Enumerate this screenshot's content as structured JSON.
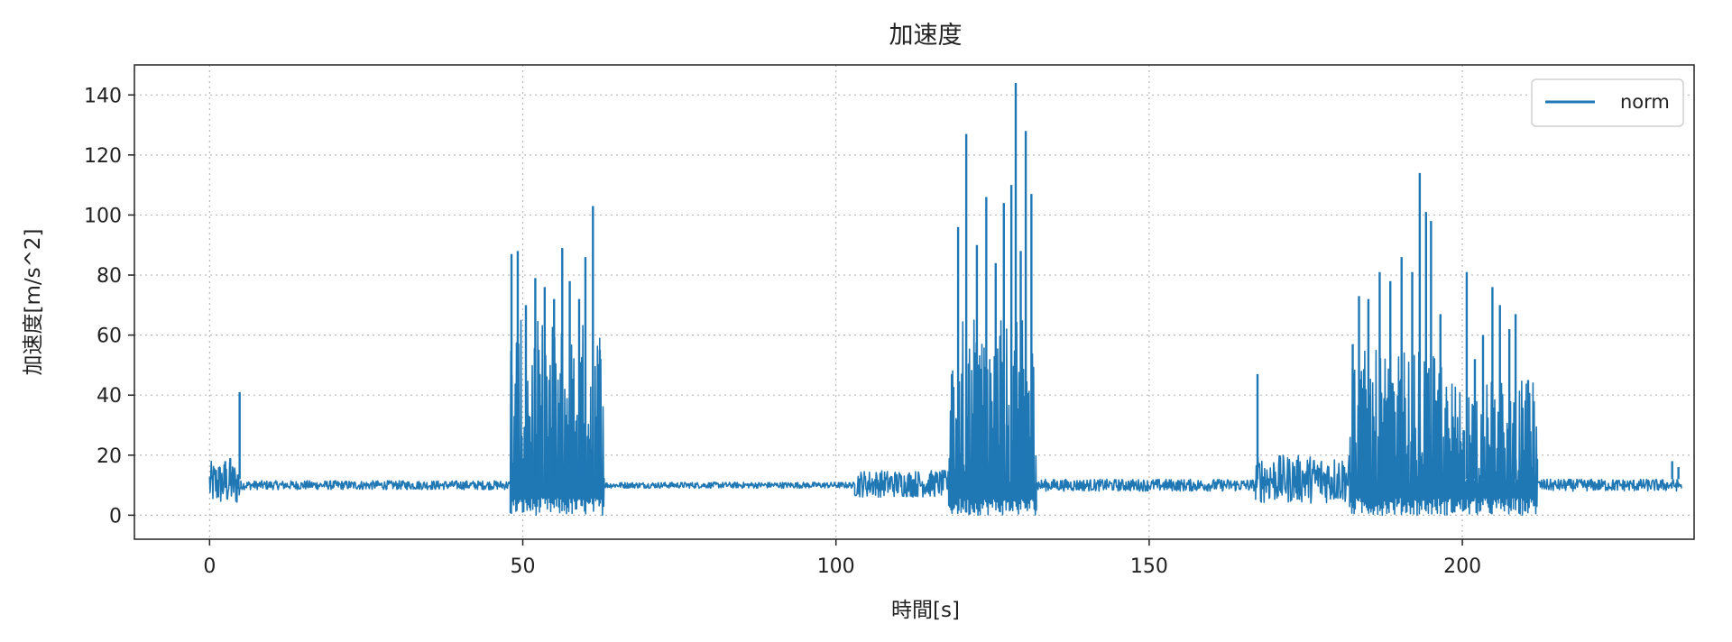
{
  "chart_data": {
    "type": "line",
    "title": "加速度",
    "xlabel": "時間[s]",
    "ylabel": "加速度[m/s^2]",
    "xlim": [
      -12,
      237
    ],
    "ylim": [
      -8,
      150
    ],
    "xticks": [
      0,
      50,
      100,
      150,
      200
    ],
    "yticks": [
      0,
      20,
      40,
      60,
      80,
      100,
      120,
      140
    ],
    "xtick_labels": [
      "0",
      "50",
      "100",
      "150",
      "200"
    ],
    "ytick_labels": [
      "0",
      "20",
      "40",
      "60",
      "80",
      "100",
      "120",
      "140"
    ],
    "grid": true,
    "legend_position": "top-right",
    "series": [
      {
        "name": "norm",
        "color": "#1f77b4",
        "segments": [
          {
            "t": [
              0,
              5
            ],
            "baseline": 10,
            "low": 3,
            "high": 18
          },
          {
            "t": [
              5,
              48
            ],
            "baseline": 10,
            "low": 8.5,
            "high": 11.5
          },
          {
            "t": [
              48,
              63
            ],
            "baseline": 10,
            "low": 0,
            "high": 65
          },
          {
            "t": [
              63,
              103
            ],
            "baseline": 10,
            "low": 9,
            "high": 11
          },
          {
            "t": [
              103,
              118
            ],
            "baseline": 10,
            "low": 6,
            "high": 15
          },
          {
            "t": [
              118,
              132
            ],
            "baseline": 10,
            "low": 0,
            "high": 65
          },
          {
            "t": [
              132,
              167
            ],
            "baseline": 10,
            "low": 8,
            "high": 12
          },
          {
            "t": [
              167,
              182
            ],
            "baseline": 11,
            "low": 4,
            "high": 20
          },
          {
            "t": [
              182,
              197
            ],
            "baseline": 10,
            "low": 0,
            "high": 55
          },
          {
            "t": [
              197,
              212
            ],
            "baseline": 10,
            "low": 0,
            "high": 45
          },
          {
            "t": [
              212,
              235
            ],
            "baseline": 10,
            "low": 8,
            "high": 12
          }
        ],
        "peaks": [
          [
            0.3,
            15
          ],
          [
            1.5,
            16
          ],
          [
            2.5,
            18
          ],
          [
            3.3,
            19
          ],
          [
            4.8,
            41
          ],
          [
            48.2,
            87
          ],
          [
            49.2,
            88
          ],
          [
            50.5,
            70
          ],
          [
            52,
            79
          ],
          [
            53.5,
            76
          ],
          [
            55,
            72
          ],
          [
            56.3,
            89
          ],
          [
            57.5,
            78
          ],
          [
            59,
            72
          ],
          [
            60,
            86
          ],
          [
            61.2,
            103
          ],
          [
            62.3,
            55
          ],
          [
            119.5,
            96
          ],
          [
            120.8,
            127
          ],
          [
            122.5,
            90
          ],
          [
            124,
            106
          ],
          [
            125.5,
            84
          ],
          [
            126.8,
            104
          ],
          [
            128,
            110
          ],
          [
            128.7,
            144
          ],
          [
            129.5,
            88
          ],
          [
            130.3,
            128
          ],
          [
            131.2,
            107
          ],
          [
            167.3,
            47
          ],
          [
            182.5,
            57
          ],
          [
            183.5,
            73
          ],
          [
            185,
            72
          ],
          [
            186.8,
            81
          ],
          [
            188.5,
            78
          ],
          [
            190.3,
            86
          ],
          [
            192,
            81
          ],
          [
            193.2,
            114
          ],
          [
            194.2,
            101
          ],
          [
            195,
            98
          ],
          [
            196.5,
            67
          ],
          [
            200.7,
            81
          ],
          [
            202,
            52
          ],
          [
            203.3,
            60
          ],
          [
            204.8,
            76
          ],
          [
            206,
            70
          ],
          [
            207.5,
            62
          ],
          [
            208.5,
            67
          ],
          [
            210.5,
            45
          ],
          [
            233.5,
            18
          ],
          [
            234.5,
            16
          ]
        ]
      }
    ]
  }
}
